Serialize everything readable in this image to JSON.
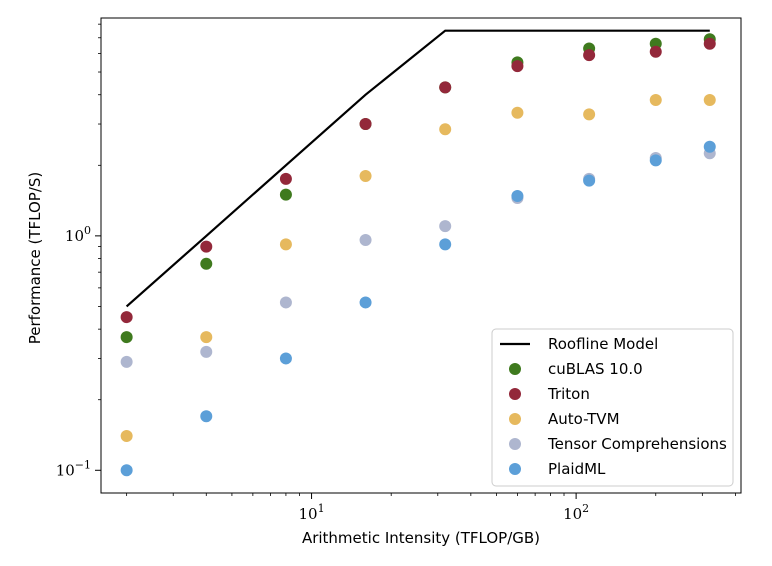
{
  "chart_data": {
    "type": "scatter",
    "title": "",
    "xlabel": "Arithmetic Intensity (TFLOP/GB)",
    "ylabel": "Performance (TFLOP/S)",
    "xscale": "log",
    "yscale": "log",
    "xlim": [
      1.6,
      420
    ],
    "ylim": [
      0.08,
      8.5
    ],
    "xticks": [
      {
        "base": "10",
        "exp": "1",
        "value": 10
      },
      {
        "base": "10",
        "exp": "2",
        "value": 100
      }
    ],
    "yticks": [
      {
        "base": "10",
        "exp": "−1",
        "value": 0.1
      },
      {
        "base": "10",
        "exp": "0",
        "value": 1
      }
    ],
    "x": [
      2,
      4,
      8,
      16,
      32,
      60,
      112,
      200,
      320
    ],
    "roofline": {
      "name": "Roofline Model",
      "color": "#000000",
      "points": [
        [
          2,
          0.5
        ],
        [
          4,
          1.0
        ],
        [
          8,
          2.0
        ],
        [
          16,
          4.0
        ],
        [
          32,
          7.5
        ],
        [
          320,
          7.5
        ]
      ]
    },
    "series": [
      {
        "name": "cuBLAS 10.0",
        "color": "#3f7a1e",
        "values": [
          0.37,
          0.76,
          1.5,
          3.0,
          4.3,
          5.5,
          6.3,
          6.6,
          6.9
        ]
      },
      {
        "name": "Triton",
        "color": "#93283a",
        "values": [
          0.45,
          0.9,
          1.75,
          3.0,
          4.3,
          5.3,
          5.9,
          6.1,
          6.6
        ]
      },
      {
        "name": "Auto-TVM",
        "color": "#e6b95e",
        "values": [
          0.14,
          0.37,
          0.92,
          1.8,
          2.85,
          3.35,
          3.3,
          3.8,
          3.8
        ]
      },
      {
        "name": "Tensor Comprehensions",
        "color": "#aeb6cf",
        "values": [
          0.29,
          0.32,
          0.52,
          0.96,
          1.1,
          1.45,
          1.75,
          2.15,
          2.25
        ]
      },
      {
        "name": "PlaidML",
        "color": "#5c9fd8",
        "values": [
          0.1,
          0.17,
          0.3,
          0.52,
          0.92,
          1.48,
          1.72,
          2.1,
          2.4
        ]
      }
    ],
    "legend_position": "bottom-right",
    "grid": false
  }
}
